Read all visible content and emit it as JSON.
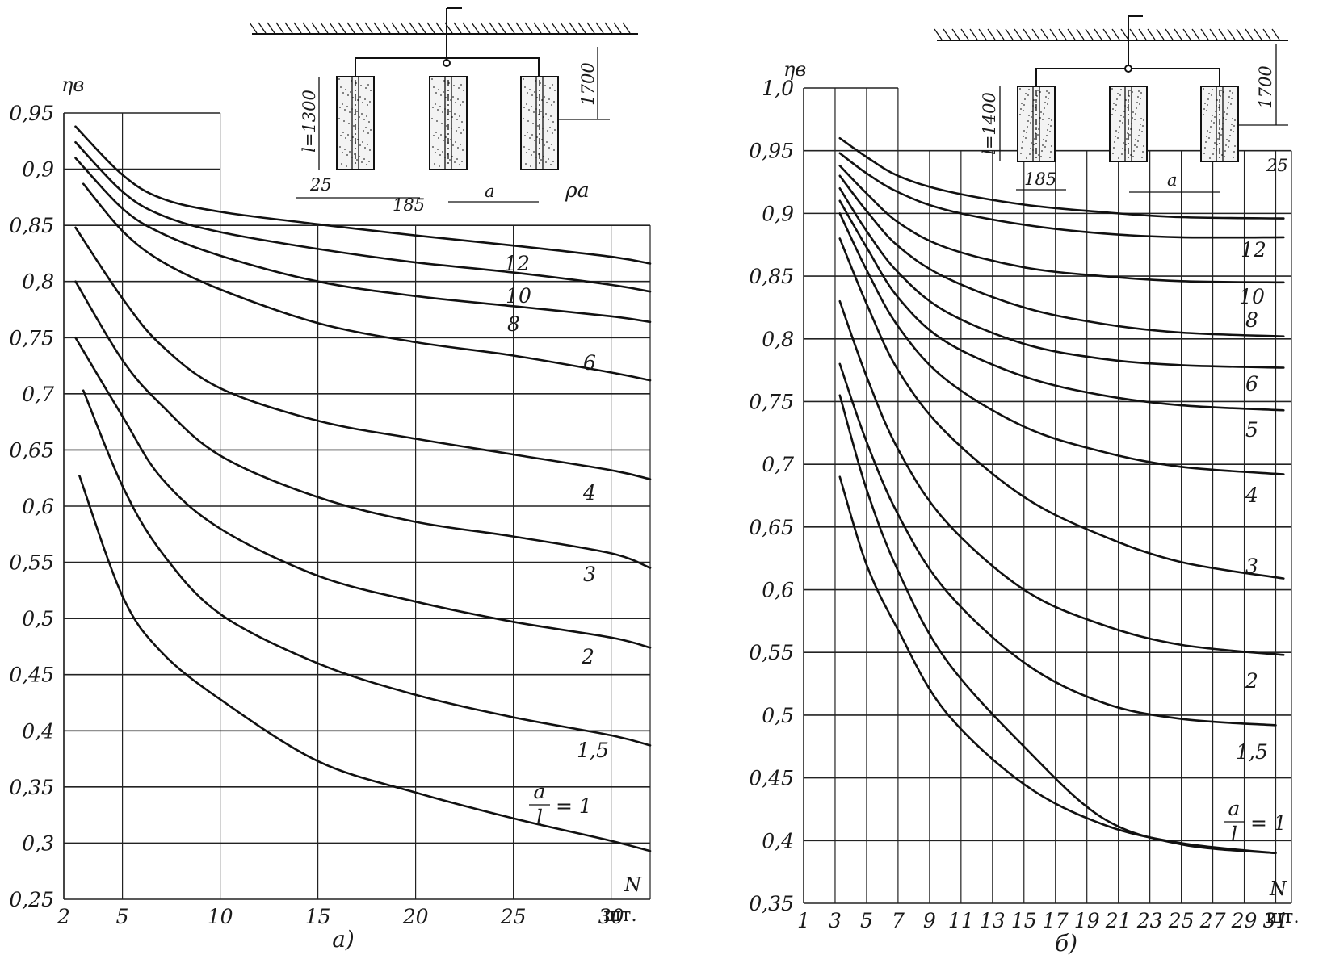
{
  "chart_data": [
    {
      "type": "line",
      "panel_label": "а)",
      "ylabel": "ηв",
      "xlabel": "N",
      "x_unit": "шт.",
      "xlim": [
        2,
        32
      ],
      "ylim": [
        0.25,
        0.95
      ],
      "x_tick_labels": [
        "2",
        "5",
        "10",
        "15",
        "20",
        "25",
        "30"
      ],
      "x_ticks": [
        2,
        5,
        10,
        15,
        20,
        25,
        30
      ],
      "y_tick_labels": [
        "0,25",
        "0,3",
        "0,35",
        "0,4",
        "0,45",
        "0,5",
        "0,55",
        "0,6",
        "0,65",
        "0,7",
        "0,75",
        "0,8",
        "0,85",
        "0,9",
        "0,95"
      ],
      "y_ticks": [
        0.25,
        0.3,
        0.35,
        0.4,
        0.45,
        0.5,
        0.55,
        0.6,
        0.65,
        0.7,
        0.75,
        0.8,
        0.85,
        0.9,
        0.95
      ],
      "grid": true,
      "series": [
        {
          "name": "12",
          "x": [
            2.6,
            5,
            7,
            10,
            15,
            20,
            25,
            30,
            32
          ],
          "y": [
            0.938,
            0.895,
            0.874,
            0.862,
            0.851,
            0.841,
            0.832,
            0.822,
            0.816
          ]
        },
        {
          "name": "10",
          "x": [
            2.6,
            5,
            7,
            10,
            15,
            20,
            25,
            30,
            32
          ],
          "y": [
            0.924,
            0.88,
            0.859,
            0.844,
            0.829,
            0.817,
            0.808,
            0.797,
            0.791
          ]
        },
        {
          "name": "8",
          "x": [
            2.6,
            5,
            7,
            10,
            15,
            20,
            25,
            30,
            32
          ],
          "y": [
            0.91,
            0.865,
            0.843,
            0.823,
            0.8,
            0.787,
            0.778,
            0.769,
            0.764
          ]
        },
        {
          "name": "6",
          "x": [
            3,
            5,
            7,
            10,
            15,
            20,
            25,
            30,
            32
          ],
          "y": [
            0.887,
            0.845,
            0.818,
            0.793,
            0.763,
            0.746,
            0.734,
            0.719,
            0.712
          ]
        },
        {
          "name": "4",
          "x": [
            2.6,
            5,
            7,
            10,
            15,
            20,
            25,
            30,
            32
          ],
          "y": [
            0.848,
            0.785,
            0.743,
            0.705,
            0.676,
            0.66,
            0.646,
            0.632,
            0.624
          ]
        },
        {
          "name": "3",
          "x": [
            2.6,
            5,
            7,
            10,
            15,
            20,
            25,
            30,
            32
          ],
          "y": [
            0.8,
            0.73,
            0.69,
            0.645,
            0.608,
            0.586,
            0.573,
            0.558,
            0.545
          ]
        },
        {
          "name": "2",
          "x": [
            2.6,
            5,
            7,
            10,
            15,
            20,
            25,
            30,
            32
          ],
          "y": [
            0.75,
            0.68,
            0.625,
            0.58,
            0.538,
            0.515,
            0.497,
            0.483,
            0.474
          ]
        },
        {
          "name": "1,5",
          "x": [
            3,
            5,
            7,
            10,
            15,
            20,
            25,
            30,
            32
          ],
          "y": [
            0.703,
            0.618,
            0.559,
            0.504,
            0.46,
            0.432,
            0.412,
            0.396,
            0.387
          ]
        },
        {
          "name": "a/l = 1",
          "x": [
            2.8,
            5,
            7,
            10,
            15,
            20,
            25,
            30,
            32
          ],
          "y": [
            0.627,
            0.52,
            0.47,
            0.428,
            0.373,
            0.345,
            0.322,
            0.302,
            0.293
          ]
        }
      ],
      "inset": {
        "dims": [
          "l=1300",
          "1700",
          "25",
          "185",
          "a",
          "ρa"
        ]
      }
    },
    {
      "type": "line",
      "panel_label": "б)",
      "ylabel": "ηв",
      "xlabel": "N",
      "x_unit": "шт.",
      "xlim": [
        1,
        32
      ],
      "ylim": [
        0.35,
        1.0
      ],
      "x_tick_labels": [
        "1",
        "3",
        "5",
        "7",
        "9",
        "11",
        "13",
        "15",
        "17",
        "19",
        "21",
        "23",
        "25",
        "27",
        "29",
        "31"
      ],
      "x_ticks": [
        1,
        3,
        5,
        7,
        9,
        11,
        13,
        15,
        17,
        19,
        21,
        23,
        25,
        27,
        29,
        31
      ],
      "y_tick_labels": [
        "0,35",
        "0,4",
        "0,45",
        "0,5",
        "0,55",
        "0,6",
        "0,65",
        "0,7",
        "0,75",
        "0,8",
        "0,85",
        "0,9",
        "0,95",
        "1,0"
      ],
      "y_ticks": [
        0.35,
        0.4,
        0.45,
        0.5,
        0.55,
        0.6,
        0.65,
        0.7,
        0.75,
        0.8,
        0.85,
        0.9,
        0.95,
        1.0
      ],
      "grid": true,
      "series": [
        {
          "name": "",
          "x": [
            3.3,
            5,
            7,
            10,
            15,
            20,
            25,
            31.5
          ],
          "y": [
            0.96,
            0.945,
            0.93,
            0.918,
            0.907,
            0.901,
            0.897,
            0.896
          ]
        },
        {
          "name": "12",
          "x": [
            3.3,
            5,
            7,
            10,
            15,
            20,
            25,
            31.5
          ],
          "y": [
            0.948,
            0.932,
            0.917,
            0.903,
            0.891,
            0.884,
            0.881,
            0.881
          ]
        },
        {
          "name": "10",
          "x": [
            3.3,
            5,
            7,
            10,
            15,
            20,
            25,
            31.5
          ],
          "y": [
            0.938,
            0.916,
            0.893,
            0.873,
            0.857,
            0.85,
            0.846,
            0.845
          ]
        },
        {
          "name": "8",
          "x": [
            3.3,
            5,
            7,
            10,
            15,
            20,
            25,
            31.5
          ],
          "y": [
            0.93,
            0.902,
            0.874,
            0.849,
            0.825,
            0.812,
            0.805,
            0.802
          ]
        },
        {
          "name": "6",
          "x": [
            3.3,
            5,
            7,
            10,
            15,
            20,
            25,
            31.5
          ],
          "y": [
            0.92,
            0.886,
            0.853,
            0.822,
            0.796,
            0.784,
            0.779,
            0.777
          ]
        },
        {
          "name": "5",
          "x": [
            3.3,
            5,
            7,
            10,
            15,
            20,
            25,
            31.5
          ],
          "y": [
            0.91,
            0.873,
            0.833,
            0.798,
            0.77,
            0.755,
            0.747,
            0.743
          ]
        },
        {
          "name": "4",
          "x": [
            3.3,
            5,
            7,
            10,
            15,
            20,
            25,
            31.5
          ],
          "y": [
            0.9,
            0.855,
            0.81,
            0.768,
            0.73,
            0.71,
            0.698,
            0.692
          ]
        },
        {
          "name": "3",
          "x": [
            3.3,
            5,
            7,
            10,
            15,
            20,
            25,
            31.5
          ],
          "y": [
            0.88,
            0.828,
            0.775,
            0.726,
            0.674,
            0.643,
            0.622,
            0.609
          ]
        },
        {
          "name": "2",
          "x": [
            3.3,
            5,
            7,
            10,
            15,
            20,
            25,
            31.5
          ],
          "y": [
            0.83,
            0.77,
            0.712,
            0.655,
            0.6,
            0.572,
            0.556,
            0.548
          ]
        },
        {
          "name": "1,5",
          "x": [
            3.3,
            5,
            7,
            10,
            15,
            20,
            25,
            31
          ],
          "y": [
            0.78,
            0.718,
            0.66,
            0.6,
            0.542,
            0.51,
            0.497,
            0.492
          ]
        },
        {
          "name": "a/l = 1",
          "x": [
            3.3,
            5,
            7,
            10,
            15,
            20,
            25,
            31
          ],
          "y": [
            0.755,
            0.68,
            0.615,
            0.545,
            0.475,
            0.418,
            0.397,
            0.39
          ]
        },
        {
          "name": "",
          "x": [
            3.3,
            5,
            7,
            10,
            15,
            20,
            25,
            31
          ],
          "y": [
            0.69,
            0.62,
            0.568,
            0.503,
            0.445,
            0.413,
            0.398,
            0.39
          ]
        }
      ],
      "inset": {
        "dims": [
          "l=1400",
          "1700",
          "25",
          "185",
          "a"
        ]
      }
    }
  ]
}
